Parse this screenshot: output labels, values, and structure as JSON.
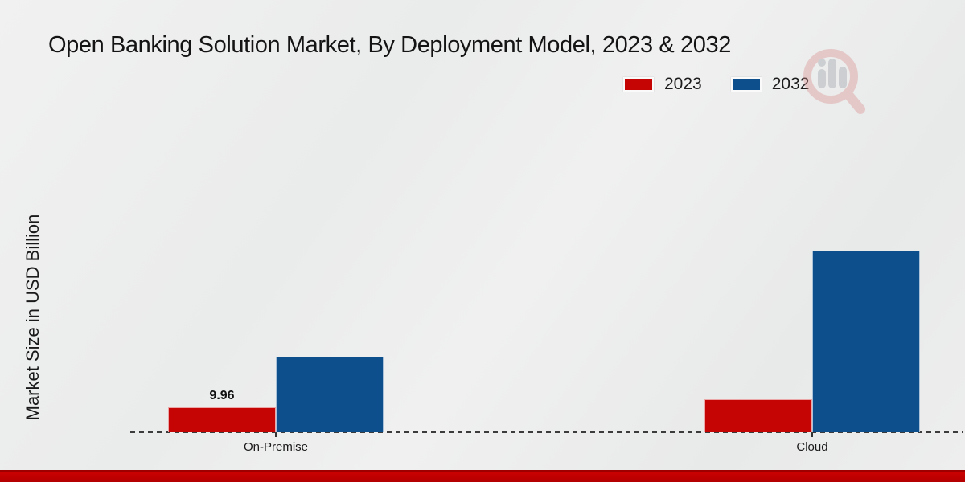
{
  "chart_data": {
    "type": "bar",
    "title": "Open Banking Solution Market, By Deployment Model, 2023 & 2032",
    "ylabel": "Market Size in USD Billion",
    "xlabel": "",
    "categories": [
      "On-Premise",
      "Cloud"
    ],
    "series": [
      {
        "name": "2023",
        "color": "#c50404",
        "values": [
          9.96,
          13.2
        ],
        "labels": [
          "9.96",
          null
        ]
      },
      {
        "name": "2032",
        "color": "#0d4e8c",
        "values": [
          30.2,
          72.5
        ],
        "labels": [
          null,
          null
        ]
      }
    ],
    "ylim": [
      0,
      125
    ],
    "grid": false,
    "legend_position": "top-right",
    "baseline_style": "dashed",
    "accent_colors": {
      "footer_band": "#c00000",
      "dashed_line": "#3c3c3c"
    }
  },
  "watermark": {
    "name": "market-research-magnifier-logo"
  }
}
